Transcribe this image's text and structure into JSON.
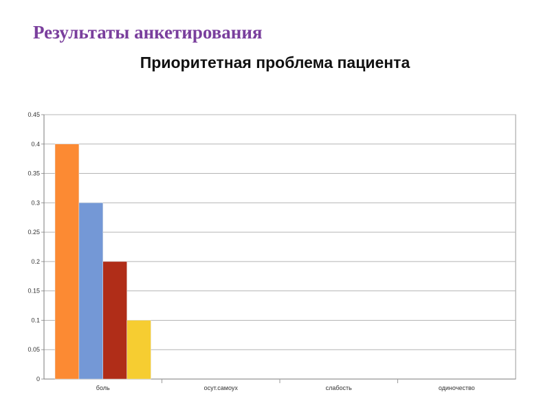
{
  "slide": {
    "title": "Результаты анкетирования"
  },
  "chart_data": {
    "type": "bar",
    "title": "Приоритетная проблема пациента",
    "categories": [
      "боль",
      "осут.самоух",
      "слабость",
      "одиночество"
    ],
    "series": [
      {
        "values": [
          0.4,
          null,
          null,
          null
        ],
        "color": "#fc8a33"
      },
      {
        "values": [
          0.3,
          null,
          null,
          null
        ],
        "color": "#7498d6"
      },
      {
        "values": [
          0.2,
          null,
          null,
          null
        ],
        "color": "#b02d18"
      },
      {
        "values": [
          0.1,
          null,
          null,
          null
        ],
        "color": "#f6cd31"
      }
    ],
    "xlabel": "",
    "ylabel": "",
    "ylim": [
      0,
      0.45
    ],
    "yticks": [
      0,
      0.05,
      0.1,
      0.15,
      0.2,
      0.25,
      0.3,
      0.35,
      0.4,
      0.45
    ],
    "ytick_labels": [
      "0",
      "0.05",
      "0.1",
      "0.15",
      "0.2",
      "0.25",
      "0.3",
      "0.35",
      "0.4",
      "0.45"
    ],
    "grid": true,
    "legend": "none"
  }
}
